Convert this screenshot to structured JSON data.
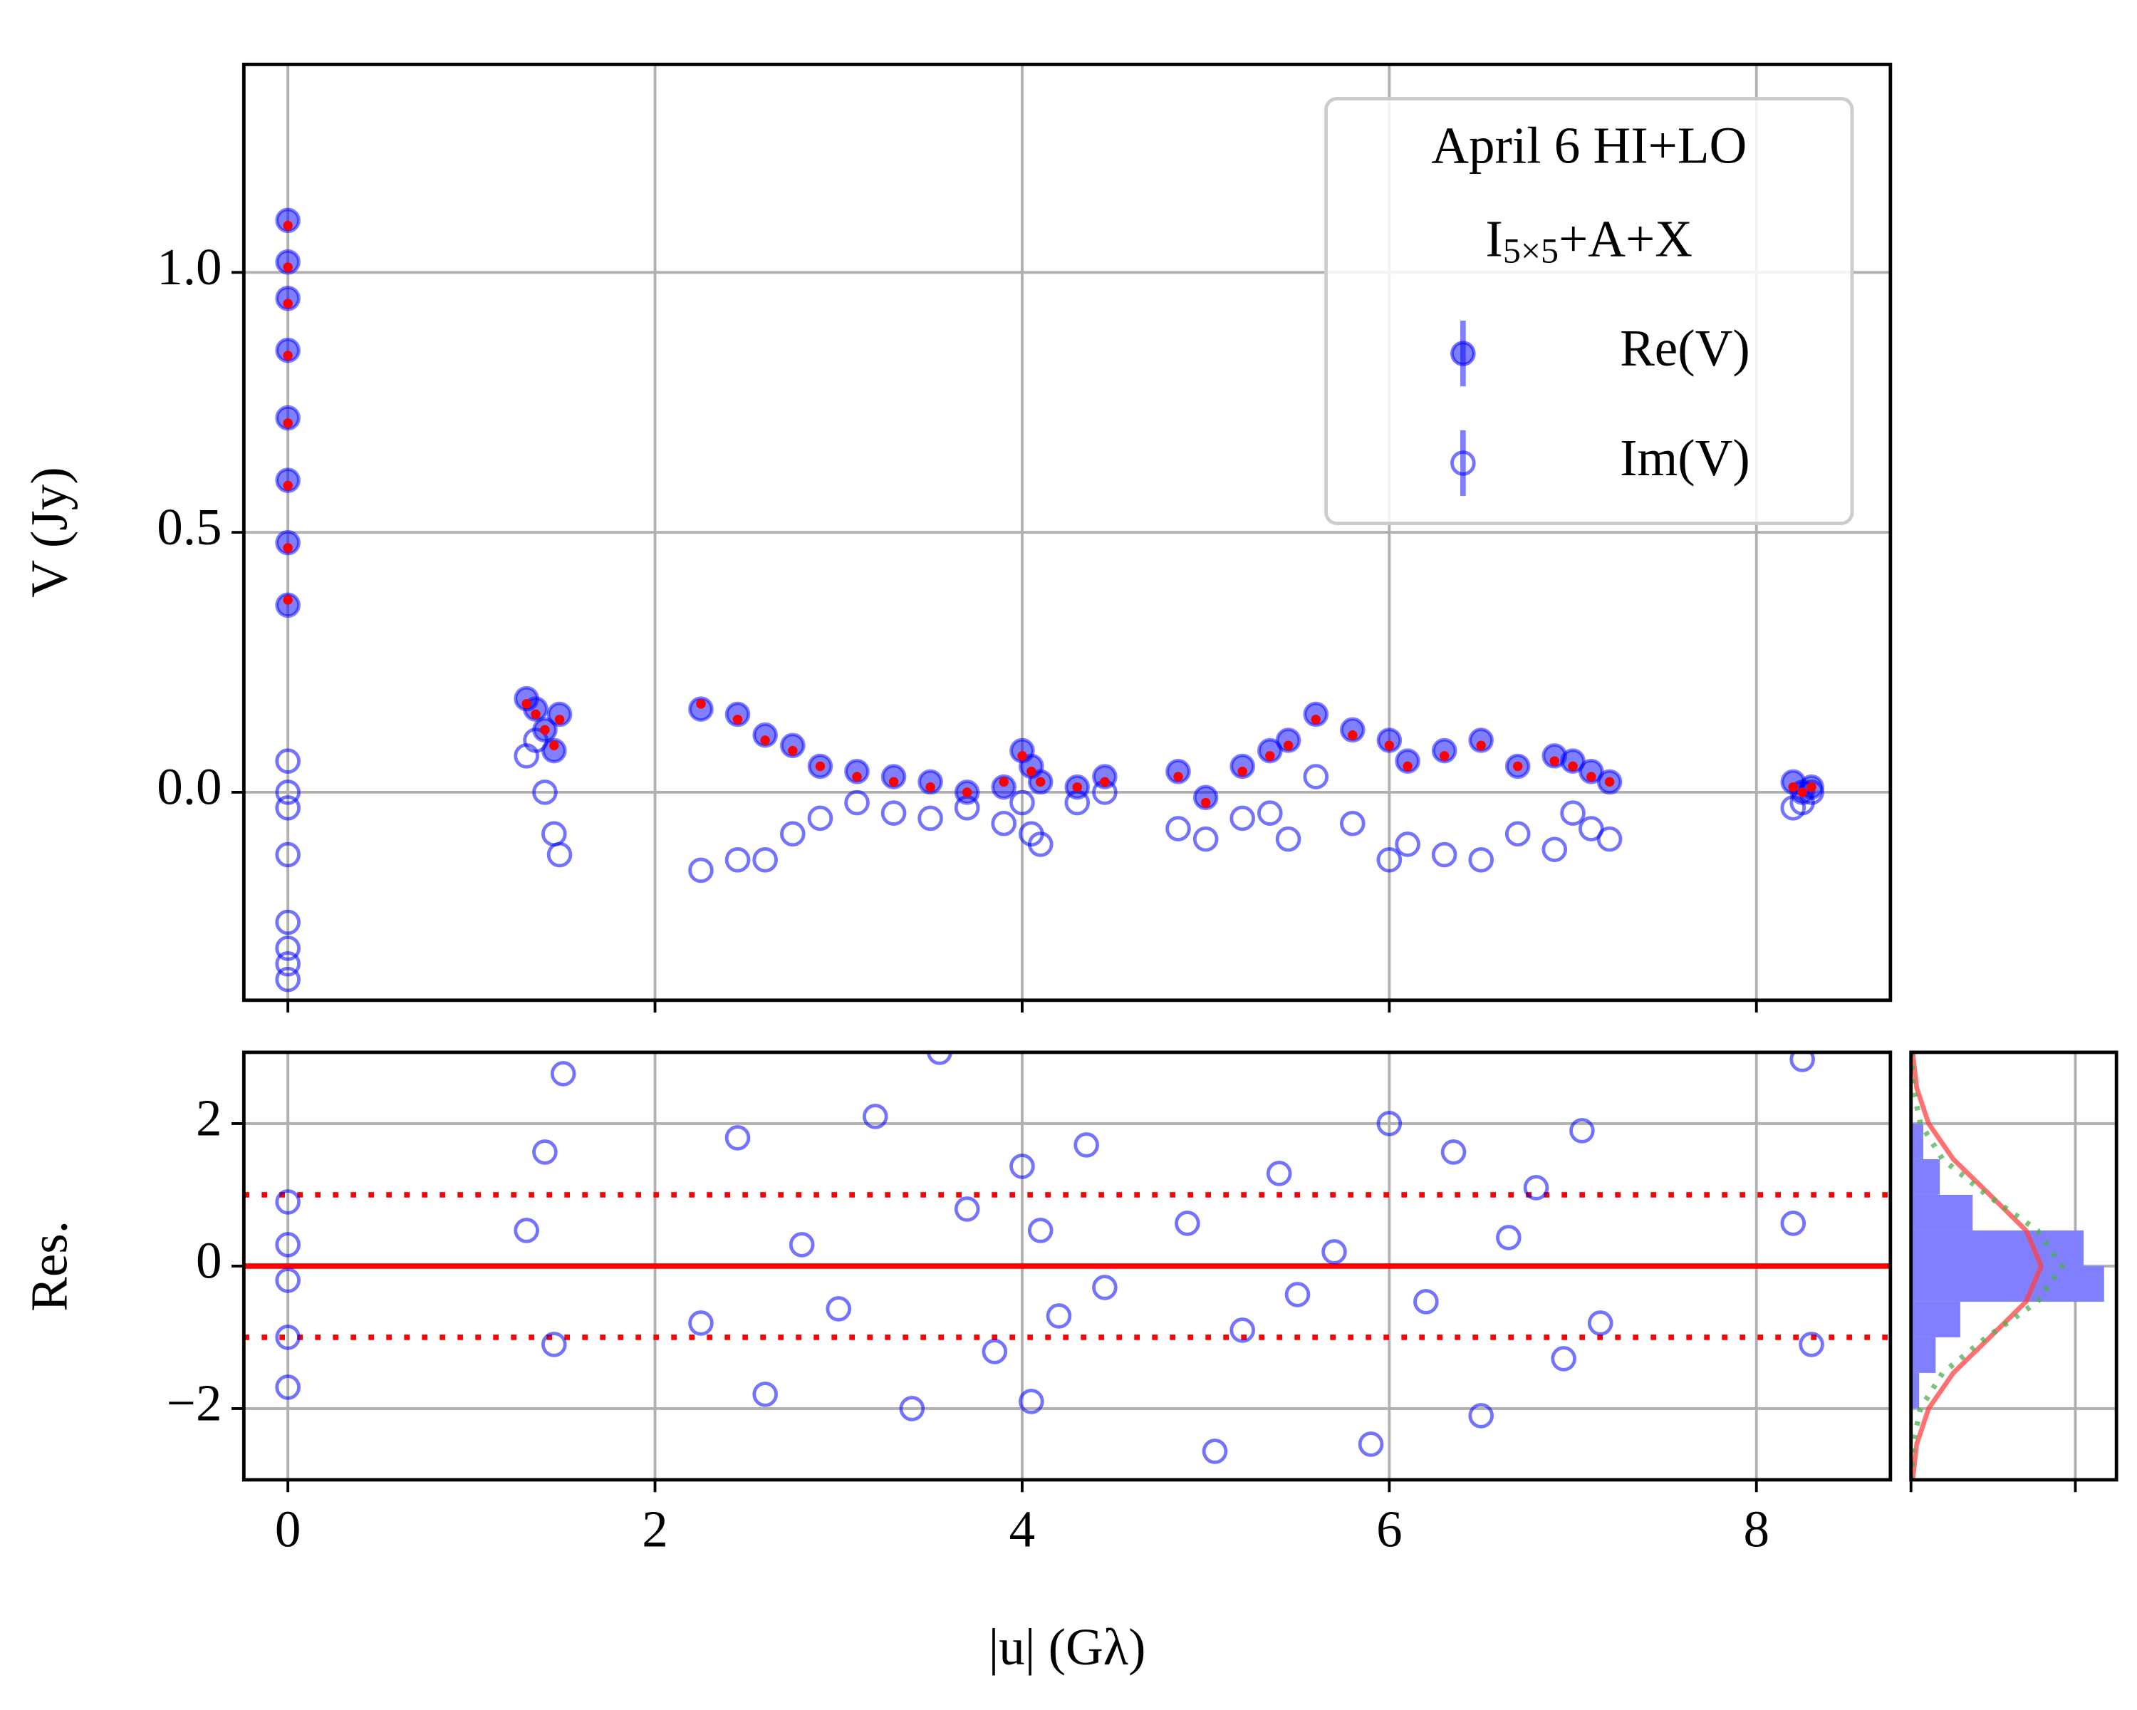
{
  "chart_data": [
    {
      "type": "scatter",
      "ylabel": "V (Jy)",
      "legend_title": "April 6 HI+LO",
      "legend_subtitle": [
        "I",
        "5×5",
        "+A+X"
      ],
      "legend": "upper right",
      "grid": true,
      "xlim": [
        -0.24,
        8.73
      ],
      "ylim": [
        -0.4,
        1.4
      ],
      "xticks": [
        0,
        2,
        4,
        6,
        8
      ],
      "yticks": [
        {
          "value": 0,
          "label": "0.0"
        },
        0.5,
        {
          "value": 1,
          "label": "1.0"
        }
      ],
      "x": [
        0,
        0,
        0,
        0,
        0,
        0,
        0,
        0,
        1.3,
        1.35,
        1.4,
        1.45,
        1.48,
        2.25,
        2.45,
        2.6,
        2.75,
        2.9,
        3.1,
        3.3,
        3.5,
        3.7,
        3.9,
        4.0,
        4.05,
        4.1,
        4.3,
        4.45,
        4.85,
        5.0,
        5.2,
        5.35,
        5.45,
        5.6,
        5.8,
        6.0,
        6.1,
        6.3,
        6.5,
        6.7,
        6.9,
        7.0,
        7.1,
        7.2,
        8.2,
        8.25,
        8.3
      ],
      "series": [
        {
          "name": "Re(V)",
          "color": "#0000ff",
          "marker": "filled",
          "values": [
            1.1,
            1.02,
            0.95,
            0.85,
            0.72,
            0.6,
            0.48,
            0.36,
            0.18,
            0.16,
            0.12,
            0.08,
            0.15,
            0.16,
            0.15,
            0.11,
            0.09,
            0.05,
            0.04,
            0.03,
            0.02,
            0.0,
            0.01,
            0.08,
            0.05,
            0.02,
            0.01,
            0.03,
            0.04,
            -0.01,
            0.05,
            0.08,
            0.1,
            0.15,
            0.12,
            0.1,
            0.06,
            0.08,
            0.1,
            0.05,
            0.07,
            0.06,
            0.04,
            0.02,
            0.02,
            0.0,
            0.01
          ]
        },
        {
          "name": "Im(V)",
          "color": "#0000ff",
          "marker": "open",
          "values": [
            0.06,
            0.0,
            -0.03,
            -0.12,
            -0.25,
            -0.3,
            -0.33,
            -0.36,
            0.07,
            0.1,
            0.0,
            -0.08,
            -0.12,
            -0.15,
            -0.13,
            -0.13,
            -0.08,
            -0.05,
            -0.02,
            -0.04,
            -0.05,
            -0.03,
            -0.06,
            -0.02,
            -0.08,
            -0.1,
            -0.02,
            0.0,
            -0.07,
            -0.09,
            -0.05,
            -0.04,
            -0.09,
            0.03,
            -0.06,
            -0.13,
            -0.1,
            -0.12,
            -0.13,
            -0.08,
            -0.11,
            -0.04,
            -0.07,
            -0.09,
            -0.03,
            -0.02,
            0.0
          ]
        },
        {
          "color": "#ff0000",
          "marker": "dot",
          "values": [
            1.09,
            1.01,
            0.94,
            0.84,
            0.71,
            0.59,
            0.47,
            0.37,
            0.17,
            0.15,
            0.12,
            0.09,
            0.14,
            0.17,
            0.14,
            0.1,
            0.08,
            0.05,
            0.03,
            0.02,
            0.01,
            0.0,
            0.02,
            0.07,
            0.04,
            0.02,
            0.01,
            0.02,
            0.03,
            -0.02,
            0.04,
            0.07,
            0.09,
            0.14,
            0.11,
            0.09,
            0.05,
            0.07,
            0.09,
            0.05,
            0.06,
            0.05,
            0.03,
            0.02,
            0.01,
            0.0,
            0.01
          ]
        }
      ]
    },
    {
      "type": "scatter",
      "ylabel": "Res.",
      "xlabel": "|u| (Gλ)",
      "grid": true,
      "xlim": [
        -0.24,
        8.73
      ],
      "ylim": [
        -3,
        3
      ],
      "xticks": [
        0,
        2,
        4,
        6,
        8
      ],
      "yticks": [
        {
          "value": -2,
          "label": "−2"
        },
        0,
        2
      ],
      "hlines": [
        {
          "value": 0,
          "style": "solid",
          "color": "#ff0000"
        },
        {
          "value": 1,
          "style": "dotted",
          "color": "#ff0000"
        },
        {
          "value": -1,
          "style": "dotted",
          "color": "#ff0000"
        }
      ],
      "x": [
        0,
        0,
        0,
        0,
        0,
        1.3,
        1.4,
        1.45,
        1.5,
        2.25,
        2.45,
        2.6,
        2.8,
        3.0,
        3.2,
        3.4,
        3.55,
        3.7,
        3.85,
        4.0,
        4.05,
        4.1,
        4.2,
        4.35,
        4.45,
        4.9,
        5.05,
        5.2,
        5.4,
        5.5,
        5.7,
        5.9,
        6.0,
        6.2,
        6.35,
        6.5,
        6.65,
        6.8,
        6.95,
        7.05,
        7.15,
        8.2,
        8.25,
        8.3
      ],
      "series": [
        {
          "color": "#0000ff",
          "marker": "open",
          "values": [
            0.9,
            0.3,
            -0.2,
            -1.0,
            -1.7,
            0.5,
            1.6,
            -1.1,
            2.7,
            -0.8,
            1.8,
            -1.8,
            0.3,
            -0.6,
            2.1,
            -2.0,
            3.0,
            0.8,
            -1.2,
            1.4,
            -1.9,
            0.5,
            -0.7,
            1.7,
            -0.3,
            0.6,
            -2.6,
            -0.9,
            1.3,
            -0.4,
            0.2,
            -2.5,
            2.0,
            -0.5,
            1.6,
            -2.1,
            0.4,
            1.1,
            -1.3,
            1.9,
            -0.8,
            0.6,
            2.9,
            -1.1
          ]
        }
      ]
    },
    {
      "type": "histogram",
      "orientation": "horizontal",
      "grid": true,
      "color": "#8080ff",
      "xlim": [
        0,
        0.5
      ],
      "ylim": [
        -3,
        3
      ],
      "xticks": [
        0,
        0.4
      ],
      "yticks": [
        -2,
        0,
        2
      ],
      "bins": [
        -2,
        -1.5,
        -1,
        -0.5,
        0,
        0.5,
        1,
        1.5,
        2
      ],
      "counts": [
        0.02,
        0.06,
        0.12,
        0.47,
        0.42,
        0.15,
        0.07,
        0.03
      ],
      "curves": [
        {
          "color": "#ff4040",
          "style": "solid",
          "y": [
            -3,
            -2.5,
            -2,
            -1.5,
            -1,
            -0.5,
            0,
            0.5,
            1,
            1.5,
            2,
            2.5,
            3
          ],
          "values": [
            0.004,
            0.014,
            0.043,
            0.103,
            0.192,
            0.28,
            0.317,
            0.28,
            0.192,
            0.103,
            0.043,
            0.014,
            0.004
          ]
        },
        {
          "color": "#4caf50",
          "style": "dotted",
          "y": [
            -3,
            -2.5,
            -2,
            -1.5,
            -1,
            -0.5,
            0,
            0.5,
            1,
            1.5,
            2,
            2.5,
            3
          ],
          "values": [
            0.001,
            0.005,
            0.023,
            0.077,
            0.184,
            0.308,
            0.367,
            0.308,
            0.184,
            0.077,
            0.023,
            0.005,
            0.001
          ]
        }
      ]
    }
  ]
}
